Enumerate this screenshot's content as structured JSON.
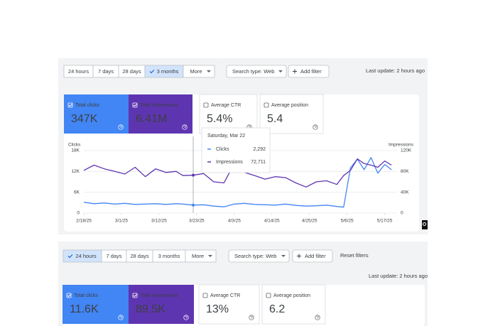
{
  "panels": [
    {
      "time_ranges": [
        "24 hours",
        "7 days",
        "28 days",
        "3 months",
        "More"
      ],
      "selected": 3,
      "search_type": "Search type: Web",
      "add_filter": "Add filter",
      "last_update": "Last update: 2 hours ago",
      "cards": [
        {
          "label": "Total clicks",
          "value": "347K",
          "color": "#4285f4"
        },
        {
          "label": "Total impressions",
          "value": "6.41M",
          "color": "#5e35b1"
        },
        {
          "label": "Average CTR",
          "value": "5.4%"
        },
        {
          "label": "Average position",
          "value": "5.4"
        }
      ]
    },
    {
      "time_ranges": [
        "24 hours",
        "7 days",
        "28 days",
        "3 months",
        "More"
      ],
      "selected": 0,
      "search_type": "Search type: Web",
      "add_filter": "Add filter",
      "reset": "Reset filters",
      "last_update": "Last update: 2 hours ago",
      "cards": [
        {
          "label": "Total clicks",
          "value": "11.6K",
          "color": "#4285f4"
        },
        {
          "label": "Total impressions",
          "value": "89.5K",
          "color": "#5e35b1"
        },
        {
          "label": "Average CTR",
          "value": "13%"
        },
        {
          "label": "Average position",
          "value": "6.2"
        }
      ]
    }
  ],
  "chart_data": {
    "type": "line",
    "x": [
      "2/18/25",
      "2/21/25",
      "2/24/25",
      "2/27/25",
      "3/2/25",
      "3/5/25",
      "3/8/25",
      "3/11/25",
      "3/14/25",
      "3/17/25",
      "3/19/25",
      "3/22/25",
      "3/25/25",
      "3/28/25",
      "3/31/25",
      "4/3/25",
      "4/6/25",
      "4/9/25",
      "4/12/25",
      "4/15/25",
      "4/18/25",
      "4/21/25",
      "4/24/25",
      "4/27/25",
      "4/30/25",
      "5/3/25",
      "5/5/25",
      "5/7/25",
      "5/9/25",
      "5/11/25",
      "5/13/25",
      "5/15/25",
      "5/17/25",
      "5/19/25"
    ],
    "xlim": [
      "2/18/25",
      "5/20/25"
    ],
    "xticks": [
      "2/18/25",
      "3/1/25",
      "3/12/25",
      "3/23/25",
      "4/3/25",
      "4/14/25",
      "4/25/25",
      "5/6/25",
      "5/17/25"
    ],
    "series": [
      {
        "name": "Clicks",
        "color": "#4285f4",
        "axis": "y",
        "values": [
          3100,
          2700,
          2900,
          2600,
          2800,
          2500,
          2600,
          2700,
          2500,
          2700,
          2600,
          2292,
          2400,
          2000,
          1800,
          2600,
          2800,
          2500,
          2400,
          2300,
          2600,
          2200,
          2000,
          2100,
          2300,
          1900,
          1700,
          13000,
          15500,
          12500,
          16000,
          11500,
          14000,
          12500
        ]
      },
      {
        "name": "Impressions",
        "color": "#5e35b1",
        "axis": "y2",
        "values": [
          82000,
          92000,
          85000,
          80000,
          75000,
          88000,
          70000,
          85000,
          78000,
          80000,
          72000,
          72711,
          76000,
          60000,
          58000,
          95000,
          78000,
          72000,
          65000,
          70000,
          68000,
          58000,
          50000,
          60000,
          62000,
          55000,
          72000,
          82000,
          104000,
          95000,
          92000,
          88000,
          100000,
          92000
        ]
      }
    ],
    "ylim": [
      0,
      18000
    ],
    "yticks": [
      0,
      {
        "value": 6000,
        "label": "6K"
      },
      {
        "value": 12000,
        "label": "12K"
      },
      {
        "value": 18000,
        "label": "18K"
      }
    ],
    "y2lim": [
      0,
      120000
    ],
    "y2ticks": [
      0,
      {
        "value": 40000,
        "label": "40K"
      },
      {
        "value": 80000,
        "label": "80K"
      },
      {
        "value": 120000,
        "label": "120K"
      }
    ],
    "grid": true,
    "tooltip": {
      "index": 11,
      "date": "Saturday, Mar 22",
      "value_labels": [
        "2,292",
        "72,711"
      ]
    }
  }
}
